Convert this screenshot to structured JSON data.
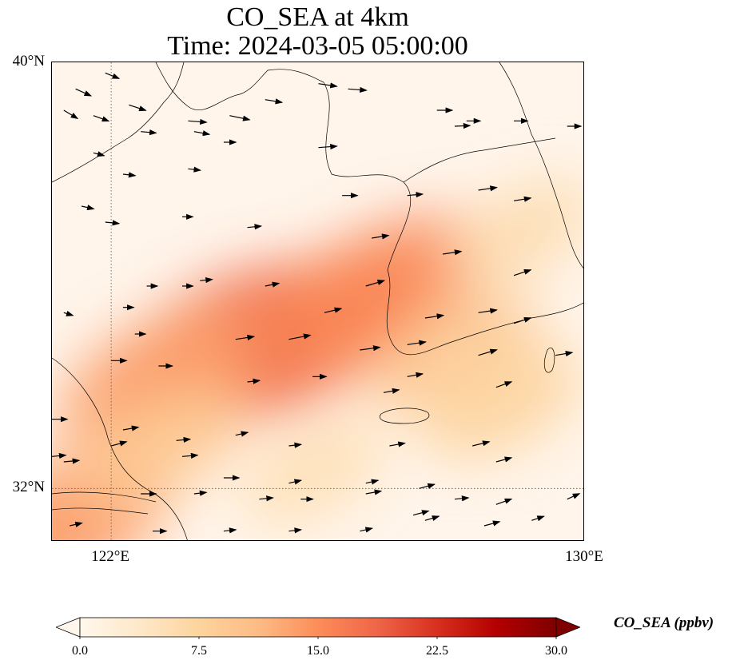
{
  "title": {
    "line1": "CO_SEA at 4km",
    "line2": "Time: 2024-03-05 05:00:00"
  },
  "map": {
    "extent": {
      "lon": [
        121,
        130
      ],
      "lat": [
        31,
        40
      ]
    },
    "lat_ticks": [
      {
        "value": 40,
        "label": "40°N"
      },
      {
        "value": 32,
        "label": "32°N"
      }
    ],
    "lon_ticks": [
      {
        "value": 122,
        "label": "122°E"
      },
      {
        "value": 130,
        "label": "130°E"
      }
    ],
    "gridlines": {
      "lon": [
        122
      ],
      "lat": [
        32
      ],
      "style": "dotted"
    },
    "background_value": 1.0,
    "plume_cores": [
      {
        "lon": 124.0,
        "lat": 34.6,
        "value": 18.5
      },
      {
        "lon": 125.2,
        "lat": 34.9,
        "value": 17.5
      },
      {
        "lon": 126.6,
        "lat": 35.7,
        "value": 15.5
      },
      {
        "lon": 122.8,
        "lat": 34.0,
        "value": 13.5
      },
      {
        "lon": 121.3,
        "lat": 31.4,
        "value": 14.0
      },
      {
        "lon": 127.8,
        "lat": 34.5,
        "value": 9.0
      },
      {
        "lon": 128.6,
        "lat": 33.6,
        "value": 7.5
      },
      {
        "lon": 122.8,
        "lat": 32.8,
        "value": 9.0
      },
      {
        "lon": 125.4,
        "lat": 32.3,
        "value": 5.5
      },
      {
        "lon": 128.9,
        "lat": 36.8,
        "value": 6.0
      }
    ],
    "wind_vectors": [
      [
        121.4,
        39.5,
        1.0,
        -0.5
      ],
      [
        121.9,
        39.8,
        0.9,
        -0.4
      ],
      [
        121.7,
        39.0,
        1.0,
        -0.4
      ],
      [
        122.3,
        39.2,
        1.1,
        -0.4
      ],
      [
        121.2,
        39.1,
        0.9,
        -0.6
      ],
      [
        122.5,
        38.7,
        1.0,
        -0.1
      ],
      [
        123.3,
        38.9,
        1.2,
        -0.1
      ],
      [
        124.0,
        39.0,
        1.3,
        -0.3
      ],
      [
        124.6,
        39.3,
        1.1,
        -0.2
      ],
      [
        125.5,
        39.6,
        1.2,
        -0.2
      ],
      [
        126.0,
        39.5,
        1.2,
        -0.1
      ],
      [
        127.5,
        39.1,
        1.0,
        0.0
      ],
      [
        128.0,
        38.9,
        0.9,
        0.0
      ],
      [
        128.8,
        38.9,
        0.9,
        0.0
      ],
      [
        129.7,
        38.8,
        0.9,
        0.0
      ],
      [
        127.8,
        38.8,
        1.0,
        0.05
      ],
      [
        123.4,
        38.7,
        1.0,
        -0.2
      ],
      [
        123.9,
        38.5,
        0.8,
        0.0
      ],
      [
        125.5,
        38.4,
        1.2,
        0.1
      ],
      [
        121.7,
        38.3,
        0.7,
        -0.2
      ],
      [
        122.2,
        37.9,
        0.8,
        -0.1
      ],
      [
        123.3,
        38.0,
        0.8,
        -0.1
      ],
      [
        125.9,
        37.5,
        1.0,
        0.0
      ],
      [
        127.0,
        37.5,
        1.0,
        0.1
      ],
      [
        128.2,
        37.6,
        1.2,
        0.2
      ],
      [
        128.8,
        37.4,
        1.1,
        0.2
      ],
      [
        121.5,
        37.3,
        0.8,
        -0.2
      ],
      [
        121.9,
        37.0,
        0.9,
        -0.1
      ],
      [
        123.2,
        37.1,
        0.7,
        0.0
      ],
      [
        124.3,
        36.9,
        0.9,
        0.1
      ],
      [
        126.4,
        36.7,
        1.1,
        0.2
      ],
      [
        127.6,
        36.4,
        1.2,
        0.2
      ],
      [
        128.8,
        36.0,
        1.1,
        0.4
      ],
      [
        122.6,
        35.8,
        0.7,
        0.0
      ],
      [
        123.2,
        35.8,
        0.7,
        0.0
      ],
      [
        123.5,
        35.9,
        0.8,
        0.1
      ],
      [
        124.6,
        35.8,
        0.9,
        0.2
      ],
      [
        125.6,
        35.3,
        1.1,
        0.3
      ],
      [
        126.3,
        35.8,
        1.2,
        0.4
      ],
      [
        127.3,
        35.2,
        1.2,
        0.2
      ],
      [
        128.2,
        35.3,
        1.2,
        0.2
      ],
      [
        128.8,
        35.1,
        1.1,
        0.4
      ],
      [
        121.2,
        35.3,
        0.6,
        -0.2
      ],
      [
        122.2,
        35.4,
        0.7,
        0.0
      ],
      [
        122.4,
        34.9,
        0.7,
        0.0
      ],
      [
        124.1,
        34.8,
        1.2,
        0.2
      ],
      [
        125.0,
        34.8,
        1.4,
        0.3
      ],
      [
        126.2,
        34.6,
        1.3,
        0.2
      ],
      [
        127.0,
        34.7,
        1.2,
        0.2
      ],
      [
        128.2,
        34.5,
        1.2,
        0.4
      ],
      [
        129.5,
        34.5,
        1.1,
        0.2
      ],
      [
        122.0,
        34.4,
        1.0,
        0.0
      ],
      [
        122.8,
        34.3,
        0.9,
        0.0
      ],
      [
        124.3,
        34.0,
        0.8,
        0.1
      ],
      [
        125.4,
        34.1,
        0.9,
        0.0
      ],
      [
        126.6,
        33.8,
        1.0,
        0.2
      ],
      [
        127.0,
        34.1,
        1.0,
        0.2
      ],
      [
        128.5,
        33.9,
        1.0,
        0.4
      ],
      [
        121.0,
        33.3,
        1.0,
        0.0
      ],
      [
        122.2,
        33.1,
        1.0,
        0.2
      ],
      [
        123.1,
        32.9,
        0.9,
        0.1
      ],
      [
        124.1,
        33.0,
        0.8,
        0.2
      ],
      [
        125.0,
        32.8,
        0.8,
        0.1
      ],
      [
        126.7,
        32.8,
        1.0,
        0.2
      ],
      [
        128.1,
        32.8,
        1.1,
        0.3
      ],
      [
        128.5,
        32.5,
        1.0,
        0.3
      ],
      [
        121.0,
        32.6,
        0.9,
        0.1
      ],
      [
        122.0,
        32.8,
        1.0,
        0.3
      ],
      [
        123.2,
        32.6,
        1.0,
        0.1
      ],
      [
        123.9,
        32.2,
        1.0,
        0.0
      ],
      [
        125.0,
        32.1,
        0.8,
        0.2
      ],
      [
        126.3,
        32.1,
        0.8,
        0.2
      ],
      [
        127.2,
        32.0,
        1.0,
        0.3
      ],
      [
        127.8,
        31.8,
        0.9,
        0.1
      ],
      [
        121.2,
        32.5,
        1.0,
        0.1
      ],
      [
        122.5,
        31.9,
        1.0,
        0.0
      ],
      [
        123.4,
        31.9,
        0.8,
        0.1
      ],
      [
        124.5,
        31.8,
        0.9,
        0.1
      ],
      [
        125.2,
        31.8,
        0.8,
        0.0
      ],
      [
        126.3,
        31.9,
        1.0,
        0.2
      ],
      [
        127.1,
        31.5,
        1.0,
        0.3
      ],
      [
        128.5,
        31.7,
        1.0,
        0.4
      ],
      [
        129.7,
        31.8,
        0.8,
        0.4
      ],
      [
        121.3,
        31.3,
        0.8,
        0.2
      ],
      [
        122.7,
        31.2,
        0.9,
        0.0
      ],
      [
        123.9,
        31.2,
        0.8,
        0.1
      ],
      [
        125.0,
        31.2,
        0.8,
        0.1
      ],
      [
        126.2,
        31.2,
        0.8,
        0.2
      ],
      [
        127.3,
        31.4,
        0.9,
        0.3
      ],
      [
        128.3,
        31.3,
        1.0,
        0.3
      ],
      [
        129.1,
        31.4,
        0.8,
        0.3
      ]
    ]
  },
  "colorbar": {
    "label": "CO_SEA (ppbv)",
    "min": 0.0,
    "max": 30.0,
    "extend": "both",
    "colormap": "OrRd-like",
    "colors": [
      "#fff7ec",
      "#fee8c8",
      "#fdd49e",
      "#fdbb84",
      "#fc8d59",
      "#ef6548",
      "#d7301f",
      "#b30000",
      "#7f0000"
    ],
    "ticks": [
      "0.0",
      "7.5",
      "15.0",
      "22.5",
      "30.0"
    ]
  }
}
